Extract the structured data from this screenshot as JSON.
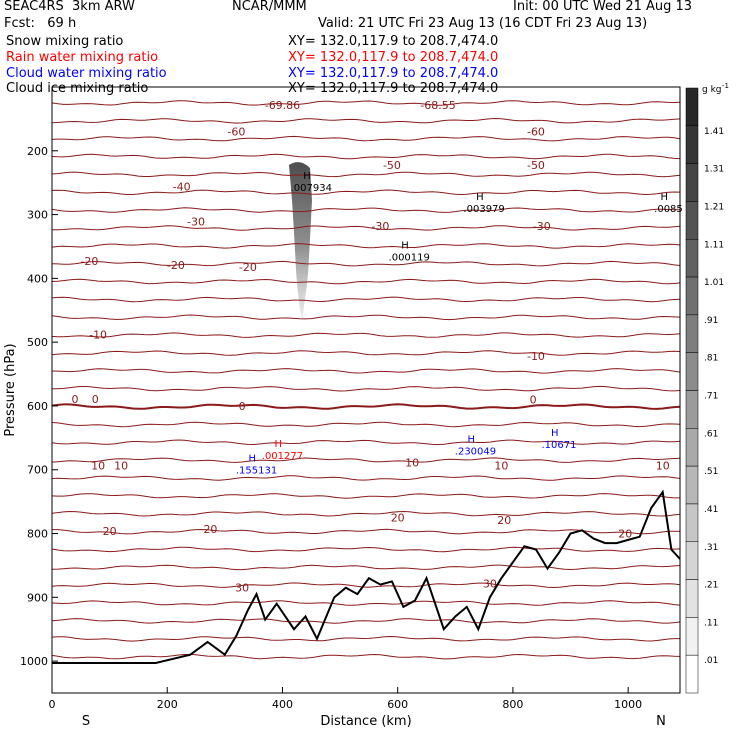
{
  "header": {
    "model": "SEAC4RS  3km ARW",
    "center": "NCAR/MMM",
    "init": "Init: 00 UTC Wed 21 Aug 13",
    "fcst": "Fcst:   69 h",
    "valid": "Valid: 21 UTC Fri 23 Aug 13 (16 CDT Fri 23 Aug 13)",
    "fields": [
      {
        "label": "Snow mixing ratio",
        "color": "#000000"
      },
      {
        "label": "Rain water mixing ratio",
        "color": "#ff0000"
      },
      {
        "label": "Cloud water mixing ratio",
        "color": "#0000ff"
      },
      {
        "label": "Cloud ice mixing ratio",
        "color": "#000000"
      }
    ],
    "xsec": "XY= 132.0,117.9 to 208.7,474.0"
  },
  "chart_data": {
    "type": "contour",
    "xlabel": "Distance (km)",
    "ylabel": "Pressure (hPa)",
    "xlim": [
      0,
      1090
    ],
    "ylim": [
      1050,
      100
    ],
    "x_ticks": [
      0,
      200,
      400,
      600,
      800,
      1000
    ],
    "y_ticks": [
      200,
      300,
      400,
      500,
      600,
      700,
      800,
      900,
      1000
    ],
    "y_tick_labels": [
      "200",
      "300",
      "400",
      "500",
      "600",
      "700",
      "800",
      "900",
      "1000"
    ],
    "left_end_label": "S",
    "right_end_label": "N",
    "colorbar": {
      "unit": "g kg",
      "unit_exp": "-1",
      "levels": [
        "1.41",
        "1.31",
        "1.21",
        "1.11",
        "1.01",
        ".91",
        ".81",
        ".71",
        ".61",
        ".51",
        ".41",
        ".31",
        ".21",
        ".11",
        ".01"
      ]
    },
    "temperature_labels": [
      {
        "text": "-69.86",
        "x": 400,
        "p": 128
      },
      {
        "text": "-68.55",
        "x": 670,
        "p": 128
      },
      {
        "text": "-60",
        "x": 320,
        "p": 170
      },
      {
        "text": "-60",
        "x": 840,
        "p": 170
      },
      {
        "text": "-50",
        "x": 590,
        "p": 222
      },
      {
        "text": "-50",
        "x": 840,
        "p": 222
      },
      {
        "text": "-40",
        "x": 225,
        "p": 256
      },
      {
        "text": "-30",
        "x": 250,
        "p": 311
      },
      {
        "text": "-30",
        "x": 570,
        "p": 318
      },
      {
        "text": "-30",
        "x": 850,
        "p": 318
      },
      {
        "text": "-20",
        "x": 65,
        "p": 373
      },
      {
        "text": "-20",
        "x": 215,
        "p": 379
      },
      {
        "text": "-20",
        "x": 340,
        "p": 382
      },
      {
        "text": "-10",
        "x": 80,
        "p": 488
      },
      {
        "text": "-10",
        "x": 840,
        "p": 522
      },
      {
        "text": "0",
        "x": 40,
        "p": 589
      },
      {
        "text": "0",
        "x": 75,
        "p": 589
      },
      {
        "text": "0",
        "x": 330,
        "p": 600
      },
      {
        "text": "0",
        "x": 835,
        "p": 590
      },
      {
        "text": "10",
        "x": 80,
        "p": 693
      },
      {
        "text": "10",
        "x": 120,
        "p": 693
      },
      {
        "text": "10",
        "x": 625,
        "p": 689
      },
      {
        "text": "10",
        "x": 780,
        "p": 693
      },
      {
        "text": "10",
        "x": 1060,
        "p": 693
      },
      {
        "text": "20",
        "x": 100,
        "p": 796
      },
      {
        "text": "20",
        "x": 275,
        "p": 793
      },
      {
        "text": "20",
        "x": 600,
        "p": 775
      },
      {
        "text": "20",
        "x": 785,
        "p": 779
      },
      {
        "text": "20",
        "x": 995,
        "p": 800
      },
      {
        "text": "30",
        "x": 330,
        "p": 885
      },
      {
        "text": "30",
        "x": 760,
        "p": 878
      }
    ],
    "maxima": [
      {
        "text": ".007934",
        "x": 450,
        "p": 260,
        "field": "Cloud ice mixing ratio"
      },
      {
        "text": ".003979",
        "x": 750,
        "p": 293,
        "field": "Cloud ice mixing ratio"
      },
      {
        "text": ".000119",
        "x": 620,
        "p": 369,
        "field": "Cloud ice mixing ratio"
      },
      {
        "text": ".0085",
        "x": 1070,
        "p": 293,
        "field": "Cloud ice mixing ratio"
      },
      {
        "text": ".001277",
        "x": 400,
        "p": 680,
        "field": "Rain water mixing ratio"
      },
      {
        "text": ".155131",
        "x": 355,
        "p": 703,
        "field": "Cloud water mixing ratio"
      },
      {
        "text": ".230049",
        "x": 735,
        "p": 673,
        "field": "Cloud water mixing ratio"
      },
      {
        "text": ".10671",
        "x": 880,
        "p": 663,
        "field": "Cloud water mixing ratio"
      }
    ],
    "terrain_pressure": [
      [
        0,
        1003
      ],
      [
        180,
        1003
      ],
      [
        240,
        990
      ],
      [
        270,
        970
      ],
      [
        300,
        990
      ],
      [
        320,
        960
      ],
      [
        340,
        920
      ],
      [
        355,
        895
      ],
      [
        370,
        935
      ],
      [
        390,
        910
      ],
      [
        420,
        950
      ],
      [
        440,
        930
      ],
      [
        460,
        965
      ],
      [
        490,
        900
      ],
      [
        510,
        885
      ],
      [
        530,
        895
      ],
      [
        550,
        870
      ],
      [
        570,
        880
      ],
      [
        590,
        875
      ],
      [
        610,
        915
      ],
      [
        630,
        905
      ],
      [
        650,
        870
      ],
      [
        680,
        950
      ],
      [
        700,
        930
      ],
      [
        720,
        915
      ],
      [
        740,
        950
      ],
      [
        760,
        900
      ],
      [
        780,
        870
      ],
      [
        800,
        845
      ],
      [
        820,
        820
      ],
      [
        840,
        825
      ],
      [
        860,
        855
      ],
      [
        880,
        830
      ],
      [
        900,
        800
      ],
      [
        920,
        795
      ],
      [
        940,
        808
      ],
      [
        960,
        815
      ],
      [
        980,
        815
      ],
      [
        1000,
        810
      ],
      [
        1020,
        805
      ],
      [
        1040,
        760
      ],
      [
        1060,
        735
      ],
      [
        1075,
        825
      ],
      [
        1090,
        840
      ]
    ]
  }
}
